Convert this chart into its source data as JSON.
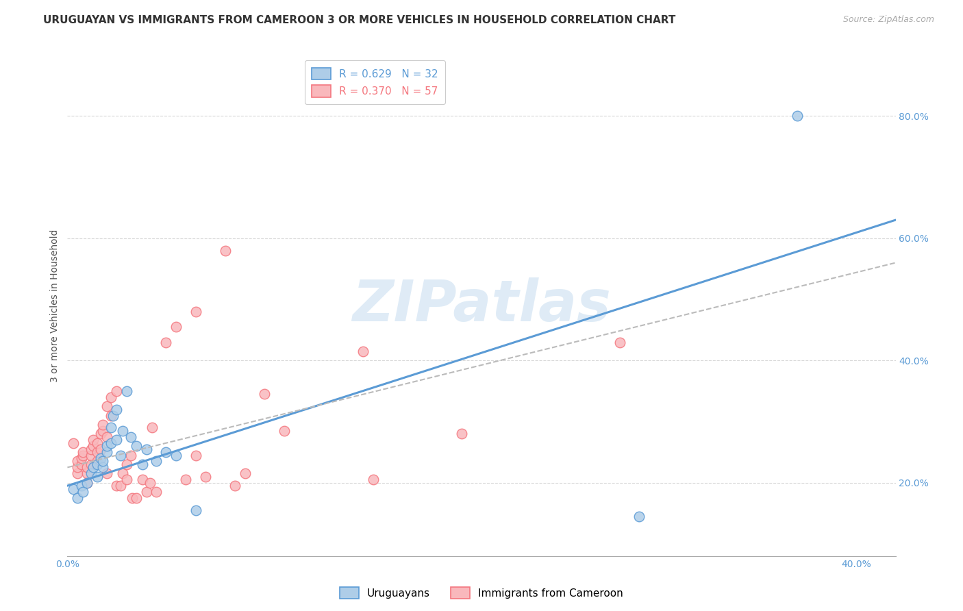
{
  "title": "URUGUAYAN VS IMMIGRANTS FROM CAMEROON 3 OR MORE VEHICLES IN HOUSEHOLD CORRELATION CHART",
  "source": "Source: ZipAtlas.com",
  "ylabel": "3 or more Vehicles in Household",
  "xlim": [
    0.0,
    0.42
  ],
  "ylim": [
    0.08,
    0.9
  ],
  "yticks": [
    0.2,
    0.4,
    0.6,
    0.8
  ],
  "ytick_labels": [
    "20.0%",
    "40.0%",
    "60.0%",
    "80.0%"
  ],
  "xticks": [
    0.0,
    0.08,
    0.16,
    0.24,
    0.32,
    0.4
  ],
  "xtick_labels": [
    "0.0%",
    "",
    "",
    "",
    "",
    "40.0%"
  ],
  "watermark": "ZIPatlas",
  "legend_items": [
    {
      "label": "R = 0.629   N = 32",
      "color": "#5b9bd5"
    },
    {
      "label": "R = 0.370   N = 57",
      "color": "#f4777f"
    }
  ],
  "blue_scatter_x": [
    0.003,
    0.005,
    0.007,
    0.008,
    0.01,
    0.012,
    0.013,
    0.015,
    0.015,
    0.017,
    0.018,
    0.018,
    0.02,
    0.02,
    0.022,
    0.022,
    0.023,
    0.025,
    0.025,
    0.027,
    0.028,
    0.03,
    0.032,
    0.035,
    0.038,
    0.04,
    0.045,
    0.05,
    0.055,
    0.065,
    0.29,
    0.37
  ],
  "blue_scatter_y": [
    0.19,
    0.175,
    0.195,
    0.185,
    0.2,
    0.215,
    0.225,
    0.23,
    0.21,
    0.24,
    0.225,
    0.235,
    0.25,
    0.26,
    0.265,
    0.29,
    0.31,
    0.32,
    0.27,
    0.245,
    0.285,
    0.35,
    0.275,
    0.26,
    0.23,
    0.255,
    0.235,
    0.25,
    0.245,
    0.155,
    0.145,
    0.8
  ],
  "pink_scatter_x": [
    0.003,
    0.005,
    0.005,
    0.005,
    0.007,
    0.007,
    0.008,
    0.008,
    0.01,
    0.01,
    0.01,
    0.012,
    0.012,
    0.012,
    0.013,
    0.013,
    0.015,
    0.015,
    0.015,
    0.017,
    0.017,
    0.018,
    0.018,
    0.02,
    0.02,
    0.02,
    0.022,
    0.022,
    0.025,
    0.025,
    0.027,
    0.028,
    0.03,
    0.03,
    0.032,
    0.033,
    0.035,
    0.038,
    0.04,
    0.042,
    0.043,
    0.045,
    0.05,
    0.055,
    0.06,
    0.065,
    0.065,
    0.07,
    0.08,
    0.085,
    0.09,
    0.1,
    0.11,
    0.15,
    0.155,
    0.2,
    0.28
  ],
  "pink_scatter_y": [
    0.265,
    0.215,
    0.225,
    0.235,
    0.23,
    0.24,
    0.245,
    0.25,
    0.2,
    0.215,
    0.225,
    0.23,
    0.245,
    0.255,
    0.26,
    0.27,
    0.235,
    0.25,
    0.265,
    0.255,
    0.28,
    0.285,
    0.295,
    0.215,
    0.275,
    0.325,
    0.31,
    0.34,
    0.35,
    0.195,
    0.195,
    0.215,
    0.205,
    0.23,
    0.245,
    0.175,
    0.175,
    0.205,
    0.185,
    0.2,
    0.29,
    0.185,
    0.43,
    0.455,
    0.205,
    0.48,
    0.245,
    0.21,
    0.58,
    0.195,
    0.215,
    0.345,
    0.285,
    0.415,
    0.205,
    0.28,
    0.43
  ],
  "blue_line_x": [
    0.0,
    0.42
  ],
  "blue_line_y": [
    0.195,
    0.63
  ],
  "pink_line_x": [
    0.0,
    0.42
  ],
  "pink_line_y": [
    0.225,
    0.56
  ],
  "blue_color": "#5b9bd5",
  "pink_color": "#f4777f",
  "blue_fill": "#aecde8",
  "pink_fill": "#f9b8bc",
  "title_fontsize": 11,
  "source_fontsize": 9,
  "ylabel_fontsize": 10,
  "tick_fontsize": 10,
  "legend_fontsize": 11,
  "marker_size": 110,
  "grid_color": "#d8d8d8",
  "background_color": "#ffffff"
}
